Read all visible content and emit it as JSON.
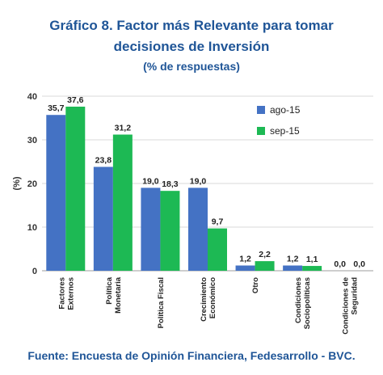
{
  "header": {
    "title_line1": "Gráfico 8. Factor más Relevante para tomar",
    "title_line2": "decisiones de Inversión",
    "title_line3": "(% de respuestas)"
  },
  "footer": {
    "source": "Fuente: Encuesta de Opinión Financiera, Fedesarrollo - BVC."
  },
  "colors": {
    "title": "#1f5597",
    "series1": "#4472c4",
    "series2": "#1db954",
    "grid": "#d9d9d9"
  },
  "chart_data": {
    "type": "bar",
    "categories": [
      [
        "Factores",
        "Externos"
      ],
      [
        "Política",
        "Monetaria"
      ],
      [
        "Política Fiscal"
      ],
      [
        "Crecimiento",
        "Económico"
      ],
      [
        "Otro"
      ],
      [
        "Condiciones",
        "Sociopolíticas"
      ],
      [
        "Condiciones de",
        "Seguridad"
      ]
    ],
    "series": [
      {
        "name": "ago-15",
        "values": [
          35.7,
          23.8,
          19.0,
          19.0,
          1.2,
          1.2,
          0.0
        ],
        "labels": [
          "35,7",
          "23,8",
          "19,0",
          "19,0",
          "1,2",
          "1,2",
          "0,0"
        ]
      },
      {
        "name": "sep-15",
        "values": [
          37.6,
          31.2,
          18.3,
          9.7,
          2.2,
          1.1,
          0.0
        ],
        "labels": [
          "37,6",
          "31,2",
          "18,3",
          "9,7",
          "2,2",
          "1,1",
          "0,0"
        ]
      }
    ],
    "ylabel": "(%)",
    "ylim": [
      0,
      40
    ],
    "yticks": [
      0,
      10,
      20,
      30,
      40
    ],
    "grid": true,
    "legend": "top-right"
  }
}
